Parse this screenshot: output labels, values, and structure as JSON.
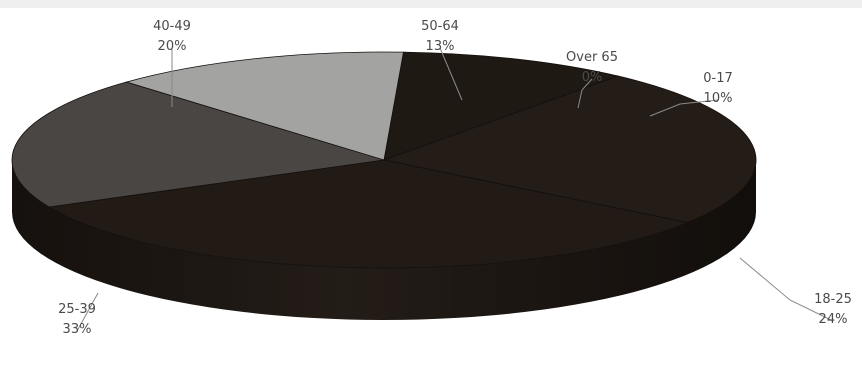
{
  "chart_data": {
    "type": "pie",
    "style": "3d",
    "slices": [
      {
        "category": "0-17",
        "value_label": "10%",
        "value": 10,
        "color": "#1f1914"
      },
      {
        "category": "18-25",
        "value_label": "24%",
        "value": 24,
        "color": "#241c17"
      },
      {
        "category": "25-39",
        "value_label": "33%",
        "value": 33,
        "color": "#211a15"
      },
      {
        "category": "40-49",
        "value_label": "20%",
        "value": 20,
        "color": "#4a4644"
      },
      {
        "category": "50-64",
        "value_label": "13%",
        "value": 13,
        "color": "#a3a3a1"
      },
      {
        "category": "Over 65",
        "value_label": "0%",
        "value": 0,
        "color": "#7a7a7a"
      }
    ],
    "title": "",
    "legend": "none"
  }
}
